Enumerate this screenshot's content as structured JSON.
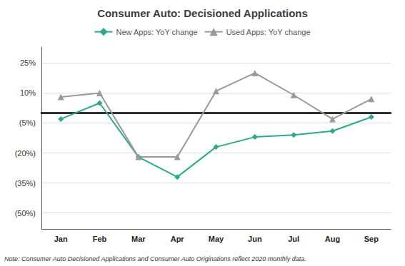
{
  "chart_data": {
    "type": "line",
    "title": "Consumer Auto: Decisioned Applications",
    "categories": [
      "Jan",
      "Feb",
      "Mar",
      "Apr",
      "May",
      "Jun",
      "Jul",
      "Aug",
      "Sep"
    ],
    "series": [
      {
        "name": "New Apps: YoY change",
        "color": "#2aaa8a",
        "marker": "diamond",
        "values": [
          -3,
          5,
          -22,
          -32,
          -17,
          -12,
          -11,
          -9,
          -2
        ]
      },
      {
        "name": "Used Apps: YoY change",
        "color": "#999999",
        "marker": "triangle",
        "values": [
          8,
          10,
          -22,
          -22,
          11,
          20,
          9,
          -3,
          7
        ]
      }
    ],
    "ylim": [
      -58,
      33
    ],
    "yticks": [
      {
        "value": 25,
        "label": "25%"
      },
      {
        "value": 10,
        "label": "10%"
      },
      {
        "value": -5,
        "label": "(5%)"
      },
      {
        "value": -20,
        "label": "(20%)"
      },
      {
        "value": -35,
        "label": "(35%)"
      },
      {
        "value": -50,
        "label": "(50%)"
      }
    ],
    "grid": true,
    "legend": "top",
    "annotations": [
      "Note: Consumer Auto Decisioned Applications and Consumer Auto Originations reflect 2020 monthly data."
    ]
  }
}
